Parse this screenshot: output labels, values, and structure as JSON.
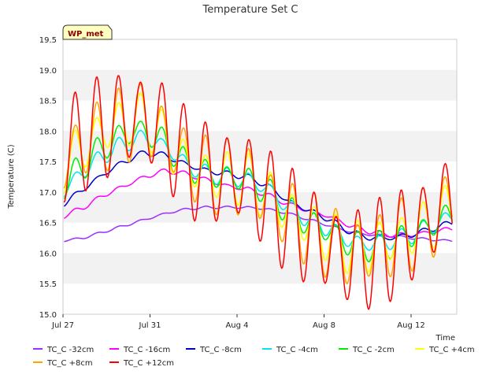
{
  "chart_data": {
    "type": "line",
    "title": "Temperature Set C",
    "ylabel": "Temperature (C)",
    "xlabel": "Time",
    "ylim": [
      15.0,
      19.5
    ],
    "yticks": [
      15.0,
      15.5,
      16.0,
      16.5,
      17.0,
      17.5,
      18.0,
      18.5,
      19.0,
      19.5
    ],
    "xticks": [
      "Jul 27",
      "Jul 31",
      "Aug 4",
      "Aug 8",
      "Aug 12"
    ],
    "grid": "horizontal bands",
    "station_label": "WP_met",
    "series": [
      {
        "name": "TC_C -32cm",
        "color": "#9b30ff",
        "base": [
          16.2,
          16.25,
          16.35,
          16.45,
          16.55,
          16.65,
          16.72,
          16.75,
          16.75,
          16.75,
          16.72,
          16.65,
          16.55,
          16.45,
          16.35,
          16.3,
          16.28,
          16.25,
          16.22,
          16.2
        ],
        "amp": 0.02
      },
      {
        "name": "TC_C -16cm",
        "color": "#ff00ff",
        "base": [
          16.6,
          16.75,
          16.95,
          17.1,
          17.25,
          17.35,
          17.3,
          17.2,
          17.1,
          17.05,
          16.95,
          16.8,
          16.7,
          16.6,
          16.45,
          16.35,
          16.3,
          16.3,
          16.35,
          16.4
        ],
        "amp": 0.04
      },
      {
        "name": "TC_C -8cm",
        "color": "#0000cc",
        "base": [
          16.8,
          17.05,
          17.3,
          17.5,
          17.65,
          17.6,
          17.45,
          17.35,
          17.3,
          17.25,
          17.1,
          16.85,
          16.7,
          16.55,
          16.35,
          16.25,
          16.25,
          16.3,
          16.4,
          16.5
        ],
        "amp": 0.05
      },
      {
        "name": "TC_C -4cm",
        "color": "#00e5ee",
        "base": [
          17.0,
          17.35,
          17.6,
          17.8,
          17.9,
          17.75,
          17.45,
          17.3,
          17.25,
          17.2,
          17.05,
          16.75,
          16.55,
          16.4,
          16.2,
          16.15,
          16.2,
          16.3,
          16.45,
          16.6
        ],
        "amp": 0.15
      },
      {
        "name": "TC_C -2cm",
        "color": "#00ee00",
        "base": [
          17.1,
          17.45,
          17.75,
          17.95,
          18.0,
          17.8,
          17.45,
          17.3,
          17.25,
          17.2,
          17.0,
          16.7,
          16.5,
          16.35,
          16.15,
          16.1,
          16.15,
          16.3,
          16.45,
          16.65
        ],
        "amp": 0.25
      },
      {
        "name": "TC_C +4cm",
        "color": "#ffff00",
        "base": [
          17.4,
          17.75,
          18.0,
          18.15,
          18.2,
          17.85,
          17.45,
          17.3,
          17.25,
          17.2,
          16.95,
          16.7,
          16.45,
          16.25,
          16.1,
          16.1,
          16.2,
          16.35,
          16.5,
          16.75
        ],
        "amp": 0.45
      },
      {
        "name": "TC_C +8cm",
        "color": "#ffa500",
        "base": [
          17.5,
          17.8,
          17.95,
          18.1,
          18.2,
          17.9,
          17.5,
          17.3,
          17.25,
          17.2,
          16.9,
          16.6,
          16.4,
          16.2,
          16.0,
          16.05,
          16.2,
          16.35,
          16.5,
          16.85
        ],
        "amp": 0.65
      },
      {
        "name": "TC_C +12cm",
        "color": "#ff0000",
        "base": [
          17.6,
          17.9,
          18.05,
          18.2,
          18.25,
          17.95,
          17.5,
          17.3,
          17.25,
          17.2,
          16.85,
          16.55,
          16.3,
          16.1,
          15.9,
          15.95,
          16.1,
          16.3,
          16.55,
          16.9
        ],
        "amp": 0.9
      }
    ]
  }
}
